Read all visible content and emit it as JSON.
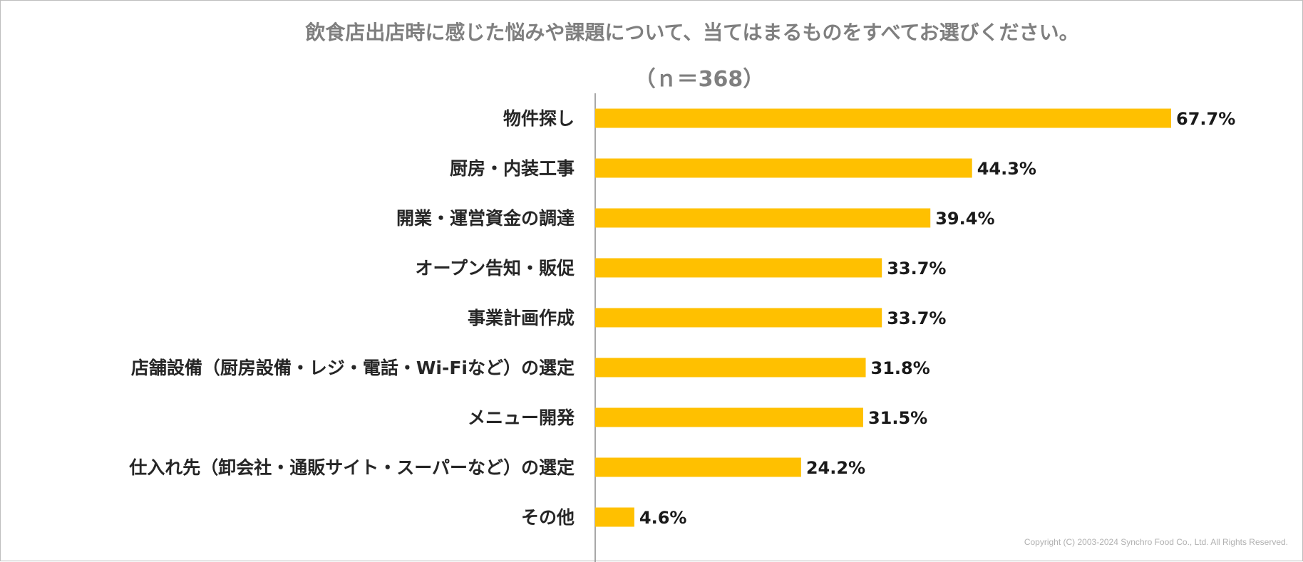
{
  "chart_data": {
    "type": "bar",
    "orientation": "horizontal",
    "title": "飲食店出店時に感じた悩みや課題について、当てはまるものをすべてお選びください。",
    "subtitle": "（ｎ＝368）",
    "categories": [
      "物件探し",
      "厨房・内装工事",
      "開業・運営資金の調達",
      "オープン告知・販促",
      "事業計画作成",
      "店舗設備（厨房設備・レジ・電話・Wi-Fiなど）の選定",
      "メニュー開発",
      "仕入れ先（卸会社・通販サイト・スーパーなど）の選定",
      "その他"
    ],
    "values": [
      67.7,
      44.3,
      39.4,
      33.7,
      33.7,
      31.8,
      31.5,
      24.2,
      4.6
    ],
    "value_labels": [
      "67.7%",
      "44.3%",
      "39.4%",
      "33.7%",
      "33.7%",
      "31.8%",
      "31.5%",
      "24.2%",
      "4.6%"
    ],
    "xlim": [
      0,
      100
    ],
    "grid": false,
    "legend": "none",
    "bar_color": "#FFC000"
  },
  "copyright": "Copyright (C) 2003-2024   Synchro Food Co., Ltd. All Rights Reserved."
}
